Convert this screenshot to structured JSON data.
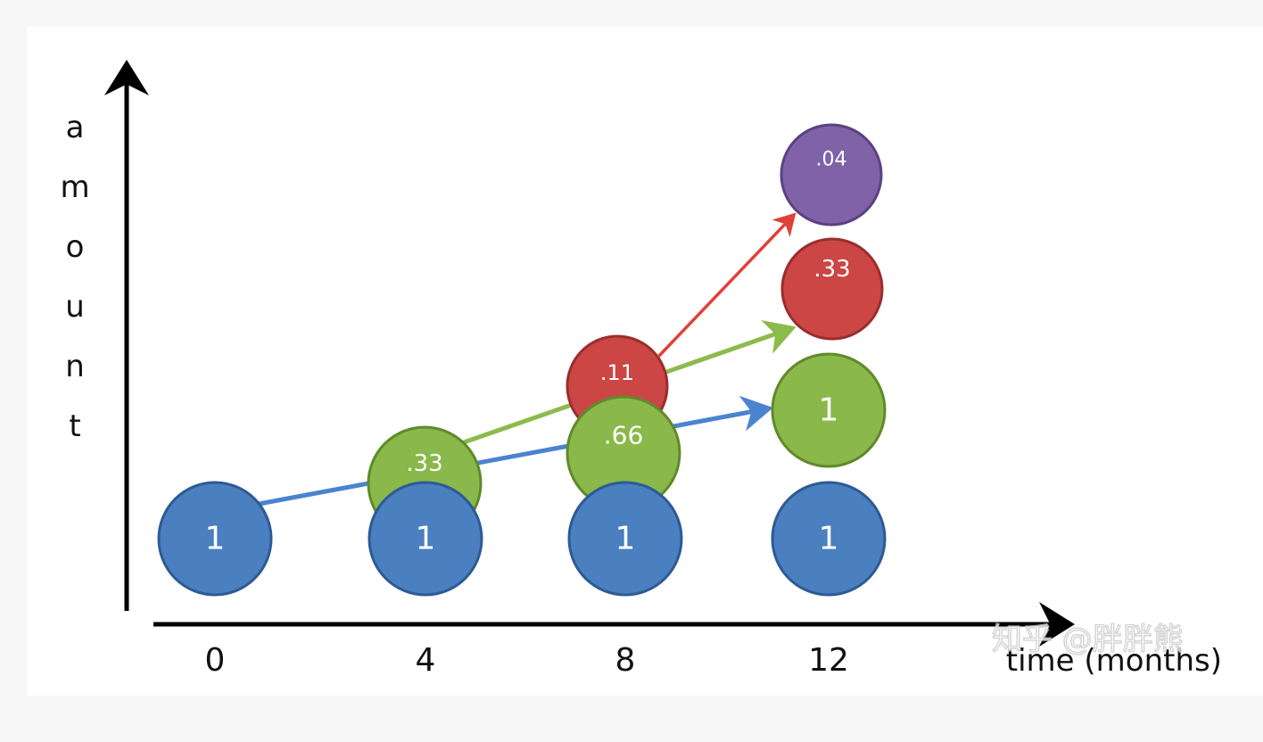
{
  "y_label": "amount",
  "x_label": "time (months)",
  "x_ticks": [
    "0",
    "4",
    "8",
    "12"
  ],
  "watermark": "知乎 @胖胖熊",
  "colors": {
    "blue": "#4a7fc0",
    "blue_edge": "#2d5b94",
    "green": "#8ab84a",
    "green_edge": "#5f8a2c",
    "red": "#cb4645",
    "red_edge": "#992e2d",
    "purple": "#7f62a8",
    "purple_edge": "#5b4280",
    "arrow_blue": "#4a83d0",
    "arrow_green": "#8cbb4c",
    "arrow_red": "#e0403a"
  },
  "bubbles": [
    {
      "month": "0",
      "row": "base",
      "label": "1",
      "color": "blue",
      "name": "bubble-month0-base"
    },
    {
      "month": "4",
      "row": "base",
      "label": "1",
      "color": "blue",
      "name": "bubble-month4-base"
    },
    {
      "month": "8",
      "row": "base",
      "label": "1",
      "color": "blue",
      "name": "bubble-month8-base"
    },
    {
      "month": "12",
      "row": "base",
      "label": "1",
      "color": "blue",
      "name": "bubble-month12-base"
    },
    {
      "month": "4",
      "row": "second",
      "label": ".33",
      "color": "green",
      "name": "bubble-month4-second"
    },
    {
      "month": "8",
      "row": "second",
      "label": ".66",
      "color": "green",
      "name": "bubble-month8-second"
    },
    {
      "month": "12",
      "row": "second",
      "label": "1",
      "color": "green",
      "name": "bubble-month12-second"
    },
    {
      "month": "8",
      "row": "third",
      "label": ".11",
      "color": "red",
      "name": "bubble-month8-third"
    },
    {
      "month": "12",
      "row": "third",
      "label": ".33",
      "color": "red",
      "name": "bubble-month12-third"
    },
    {
      "month": "12",
      "row": "fourth",
      "label": ".04",
      "color": "purple",
      "name": "bubble-month12-fourth"
    }
  ],
  "arrows": [
    {
      "from": "bubble-month0-base",
      "to": "bubble-month12-second",
      "color": "arrow_blue",
      "name": "arrow-blue"
    },
    {
      "from": "bubble-month4-second",
      "to": "bubble-month12-third",
      "color": "arrow_green",
      "name": "arrow-green"
    },
    {
      "from": "bubble-month8-third",
      "to": "bubble-month12-fourth",
      "color": "arrow_red",
      "name": "arrow-red"
    }
  ]
}
